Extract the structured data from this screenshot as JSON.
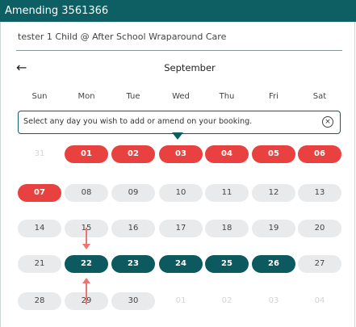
{
  "window": {
    "title": "Amending 3561366"
  },
  "booking": {
    "child": "tester 1 Child @ After School Wraparound Care"
  },
  "calendar": {
    "month": "September",
    "weekdays": [
      "Sun",
      "Mon",
      "Tue",
      "Wed",
      "Thu",
      "Fri",
      "Sat"
    ],
    "tip": "Select any day you wish to add or amend on your booking.",
    "tip_close_icon": "close-icon",
    "back_icon": "arrow-left-icon",
    "weeks": [
      [
        {
          "label": "31",
          "state": "faded"
        },
        {
          "label": "01",
          "state": "booked"
        },
        {
          "label": "02",
          "state": "booked"
        },
        {
          "label": "03",
          "state": "booked"
        },
        {
          "label": "04",
          "state": "booked"
        },
        {
          "label": "05",
          "state": "booked"
        },
        {
          "label": "06",
          "state": "booked"
        }
      ],
      [
        {
          "label": "07",
          "state": "booked"
        },
        {
          "label": "08",
          "state": "available"
        },
        {
          "label": "09",
          "state": "available"
        },
        {
          "label": "10",
          "state": "available"
        },
        {
          "label": "11",
          "state": "available"
        },
        {
          "label": "12",
          "state": "available"
        },
        {
          "label": "13",
          "state": "available"
        }
      ],
      [
        {
          "label": "14",
          "state": "available"
        },
        {
          "label": "15",
          "state": "available"
        },
        {
          "label": "16",
          "state": "available"
        },
        {
          "label": "17",
          "state": "available"
        },
        {
          "label": "18",
          "state": "available"
        },
        {
          "label": "19",
          "state": "available"
        },
        {
          "label": "20",
          "state": "available"
        }
      ],
      [
        {
          "label": "21",
          "state": "available"
        },
        {
          "label": "22",
          "state": "selected"
        },
        {
          "label": "23",
          "state": "selected"
        },
        {
          "label": "24",
          "state": "selected"
        },
        {
          "label": "25",
          "state": "selected"
        },
        {
          "label": "26",
          "state": "selected"
        },
        {
          "label": "27",
          "state": "available"
        }
      ],
      [
        {
          "label": "28",
          "state": "available"
        },
        {
          "label": "29",
          "state": "available"
        },
        {
          "label": "30",
          "state": "available"
        },
        {
          "label": "01",
          "state": "faded"
        },
        {
          "label": "02",
          "state": "faded"
        },
        {
          "label": "03",
          "state": "faded"
        },
        {
          "label": "04",
          "state": "faded"
        }
      ]
    ]
  },
  "colors": {
    "header": "#0e5f63",
    "booked": "#e8413f",
    "selected": "#0c5a5f",
    "available": "#e9eaeb",
    "annotation_arrow": "#f07373"
  }
}
